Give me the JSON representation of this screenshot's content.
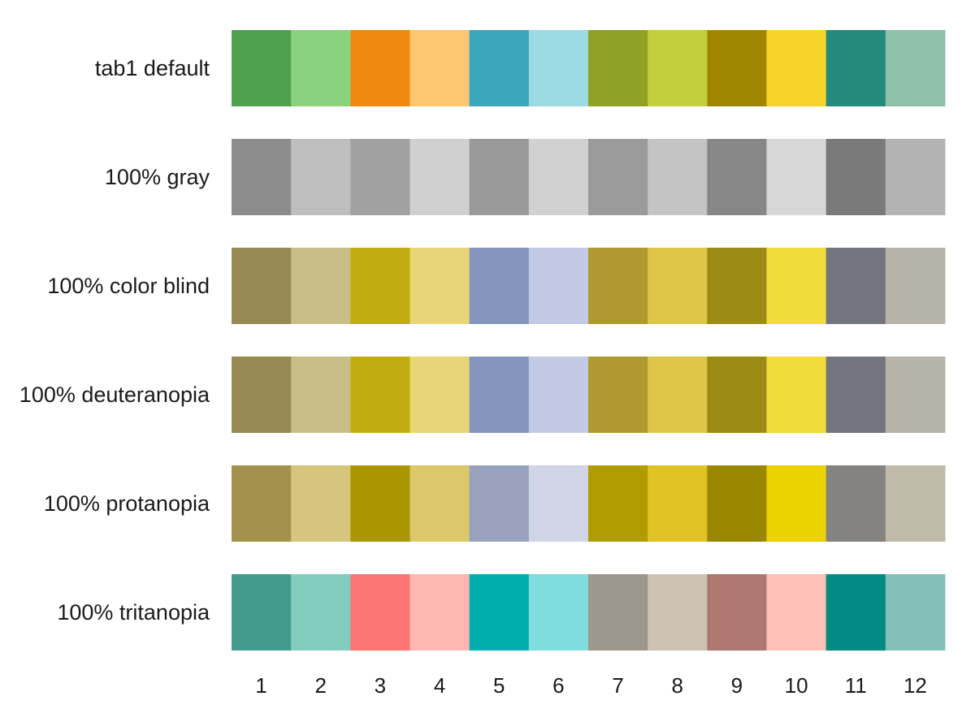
{
  "chart_data": {
    "type": "heatmap",
    "title": "",
    "xlabel": "",
    "ylabel": "",
    "grid": false,
    "categories": [
      "1",
      "2",
      "3",
      "4",
      "5",
      "6",
      "7",
      "8",
      "9",
      "10",
      "11",
      "12"
    ],
    "rows": [
      {
        "label": "tab1 default",
        "colors": [
          "#4fa04f",
          "#8bd27f",
          "#ef8a10",
          "#fcc770",
          "#3ca6bd",
          "#9bd9e3",
          "#91a126",
          "#c2cf3c",
          "#a08500",
          "#f7d42a",
          "#238a7c",
          "#8dc0a8"
        ]
      },
      {
        "label": "100% gray",
        "colors": [
          "#8c8c8c",
          "#bebebe",
          "#a1a1a1",
          "#d0d0d0",
          "#9a9a9a",
          "#d1d1d1",
          "#9b9b9b",
          "#c4c4c4",
          "#878787",
          "#d7d7d7",
          "#7a7a7a",
          "#b3b3b3"
        ]
      },
      {
        "label": "100% color blind",
        "colors": [
          "#968953",
          "#cabe88",
          "#c2ad11",
          "#e8d676",
          "#8596bd",
          "#c1cae5",
          "#af9a2f",
          "#dec549",
          "#9c8b14",
          "#f2db3b",
          "#73757e",
          "#b6b3a8"
        ]
      },
      {
        "label": "100% deuteranopia",
        "colors": [
          "#968953",
          "#cabe88",
          "#c2ad11",
          "#e8d676",
          "#8596bd",
          "#c1cae5",
          "#af9a2f",
          "#dec549",
          "#9c8b14",
          "#f2db3b",
          "#73757e",
          "#b6b3a8"
        ]
      },
      {
        "label": "100% protanopia",
        "colors": [
          "#a3924b",
          "#d6c57d",
          "#ac9600",
          "#dcc769",
          "#98a2bd",
          "#cfd4e6",
          "#b29b00",
          "#dfc324",
          "#9a8700",
          "#ecd200",
          "#858380",
          "#bfbaa9"
        ]
      },
      {
        "label": "100% tritanopia",
        "colors": [
          "#439b8d",
          "#83cdbf",
          "#ff7574",
          "#feb7b1",
          "#00aeae",
          "#7fdedd",
          "#9e978b",
          "#cec2b3",
          "#ad7870",
          "#ffc0b5",
          "#008b83",
          "#84bfb8"
        ]
      }
    ]
  }
}
